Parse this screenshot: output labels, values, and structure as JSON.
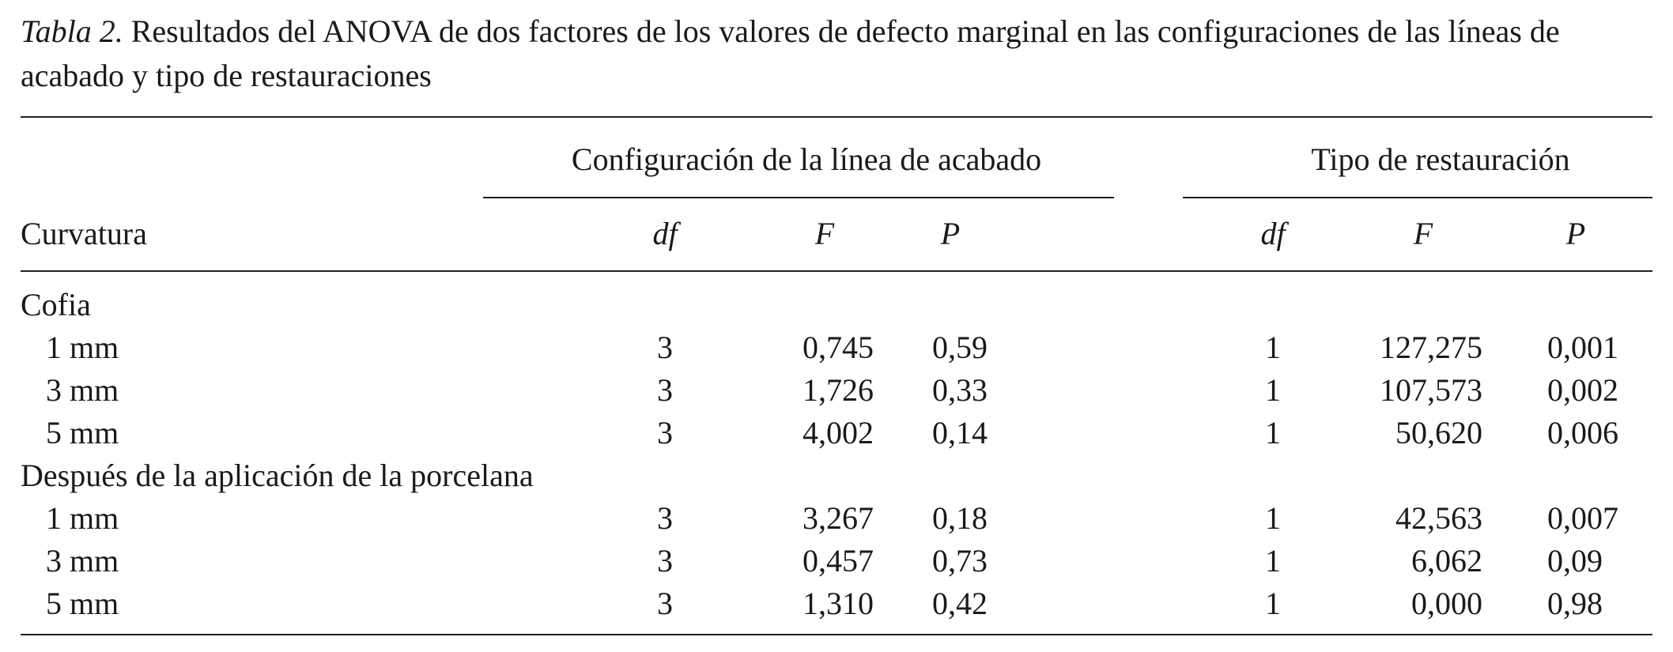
{
  "caption": {
    "label": "Tabla 2.",
    "text": "Resultados del ANOVA de dos factores de los valores de defecto marginal en las configuraciones de las líneas de acabado y tipo de restauraciones"
  },
  "table": {
    "group_headers": [
      "Configuración de la línea de acabado",
      "Tipo de restauración"
    ],
    "row_header": "Curvatura",
    "col_headers": [
      "df",
      "F",
      "P",
      "df",
      "F",
      "P"
    ],
    "groups": [
      {
        "label": "Cofia",
        "rows": [
          {
            "label": "1 mm",
            "cells": [
              "3",
              "0,745",
              "0,59",
              "1",
              "127,275",
              "0,001"
            ]
          },
          {
            "label": "3 mm",
            "cells": [
              "3",
              "1,726",
              "0,33",
              "1",
              "107,573",
              "0,002"
            ]
          },
          {
            "label": "5 mm",
            "cells": [
              "3",
              "4,002",
              "0,14",
              "1",
              "50,620",
              "0,006"
            ]
          }
        ]
      },
      {
        "label": "Después de la aplicación de la porcelana",
        "rows": [
          {
            "label": "1 mm",
            "cells": [
              "3",
              "3,267",
              "0,18",
              "1",
              "42,563",
              "0,007"
            ]
          },
          {
            "label": "3 mm",
            "cells": [
              "3",
              "0,457",
              "0,73",
              "1",
              "6,062",
              "0,09"
            ]
          },
          {
            "label": "5 mm",
            "cells": [
              "3",
              "1,310",
              "0,42",
              "1",
              "0,000",
              "0,98"
            ]
          }
        ]
      }
    ]
  }
}
